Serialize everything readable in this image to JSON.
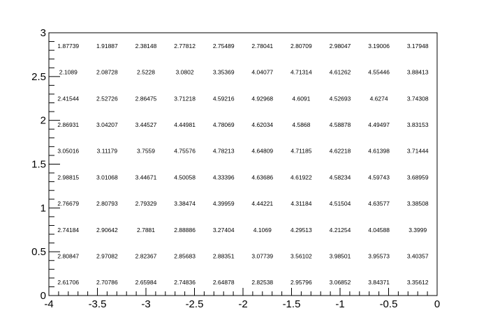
{
  "chart_data": {
    "type": "table",
    "title": "",
    "xlabel": "",
    "ylabel": "",
    "xlim": [
      -4,
      0
    ],
    "ylim": [
      0,
      3
    ],
    "grid": false,
    "x_tick_labels": [
      "-4",
      "-3.5",
      "-3",
      "-2.5",
      "-2",
      "-1.5",
      "-1",
      "-0.5",
      "0"
    ],
    "y_tick_labels": [
      "0",
      "0.5",
      "1",
      "1.5",
      "2",
      "2.5",
      "3"
    ],
    "x_bin_centers": [
      -3.8,
      -3.4,
      -3.0,
      -2.6,
      -2.2,
      -1.8,
      -1.4,
      -1.0,
      -0.6,
      -0.2
    ],
    "y_bin_centers": [
      2.85,
      2.55,
      2.25,
      1.95,
      1.65,
      1.35,
      1.05,
      0.75,
      0.45,
      0.15
    ],
    "cells": [
      [
        "1.87739",
        "1.91887",
        "2.38148",
        "2.77812",
        "2.75489",
        "2.78041",
        "2.80709",
        "2.98047",
        "3.19006",
        "3.17948"
      ],
      [
        "2.1089",
        "2.08728",
        "2.5228",
        "3.0802",
        "3.35369",
        "4.04077",
        "4.71314",
        "4.61262",
        "4.55446",
        "3.88413"
      ],
      [
        "2.41544",
        "2.52726",
        "2.86475",
        "3.71218",
        "4.59216",
        "4.92968",
        "4.6091",
        "4.52693",
        "4.6274",
        "3.74308"
      ],
      [
        "2.86931",
        "3.04207",
        "3.44527",
        "4.44981",
        "4.78069",
        "4.62034",
        "4.5868",
        "4.58878",
        "4.49497",
        "3.83153"
      ],
      [
        "3.05016",
        "3.11179",
        "3.7559",
        "4.75576",
        "4.78213",
        "4.64809",
        "4.71185",
        "4.62218",
        "4.61398",
        "3.71444"
      ],
      [
        "2.98815",
        "3.01068",
        "3.44671",
        "4.50058",
        "4.33396",
        "4.63686",
        "4.61922",
        "4.58234",
        "4.59743",
        "3.68959"
      ],
      [
        "2.76679",
        "2.80793",
        "2.79329",
        "3.38474",
        "4.39959",
        "4.44221",
        "4.31184",
        "4.51504",
        "4.63577",
        "3.38508"
      ],
      [
        "2.74184",
        "2.90642",
        "2.7881",
        "2.88886",
        "3.27404",
        "4.1069",
        "4.29513",
        "4.21254",
        "4.04588",
        "3.3999"
      ],
      [
        "2.80847",
        "2.97082",
        "2.82367",
        "2.85683",
        "2.88351",
        "3.07739",
        "3.56102",
        "3.98501",
        "3.95573",
        "3.40357"
      ],
      [
        "2.61706",
        "2.70786",
        "2.65984",
        "2.74836",
        "2.64878",
        "2.82538",
        "2.95796",
        "3.06852",
        "3.84371",
        "3.35612"
      ]
    ]
  }
}
